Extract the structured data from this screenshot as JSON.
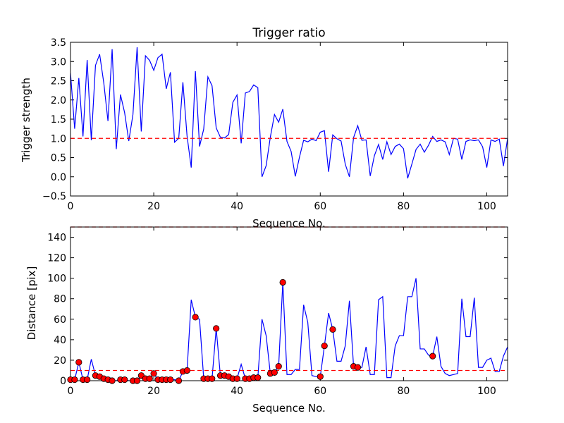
{
  "chart_data": [
    {
      "type": "line",
      "title": "Trigger ratio",
      "xlabel": "Sequence No.",
      "ylabel": "Trigger strength",
      "xlim": [
        0,
        105
      ],
      "ylim": [
        -0.5,
        3.5
      ],
      "xticks": [
        "0",
        "20",
        "40",
        "60",
        "80",
        "100"
      ],
      "yticks": [
        "−0.5",
        "0.0",
        "0.5",
        "1.0",
        "1.5",
        "2.0",
        "2.5",
        "3.0",
        "3.5"
      ],
      "grid": false,
      "line_color": "#0000ff",
      "threshold": {
        "y": 1.0,
        "color": "#ff0000",
        "style": "dashed"
      },
      "series": [
        {
          "values": [
            2.7,
            1.25,
            2.57,
            1.05,
            3.04,
            0.95,
            2.9,
            3.19,
            2.44,
            1.45,
            3.32,
            0.72,
            2.14,
            1.67,
            0.93,
            1.62,
            3.37,
            1.18,
            3.15,
            3.03,
            2.77,
            3.1,
            3.19,
            2.29,
            2.72,
            0.9,
            1.0,
            2.46,
            1.06,
            0.24,
            2.75,
            0.79,
            1.24,
            2.6,
            2.37,
            1.27,
            1.03,
            1.01,
            1.1,
            1.94,
            2.13,
            0.87,
            2.18,
            2.22,
            2.39,
            2.32,
            0.0,
            0.29,
            1.03,
            1.62,
            1.42,
            1.76,
            0.92,
            0.66,
            0.01,
            0.51,
            0.95,
            0.91,
            0.98,
            0.94,
            1.16,
            1.2,
            0.13,
            1.09,
            0.99,
            0.93,
            0.33,
            0.0,
            1.02,
            1.33,
            0.95,
            0.96,
            0.02,
            0.55,
            0.84,
            0.45,
            0.91,
            0.58,
            0.79,
            0.85,
            0.73,
            -0.04,
            0.33,
            0.71,
            0.85,
            0.64,
            0.82,
            1.05,
            0.92,
            0.96,
            0.91,
            0.58,
            1.0,
            0.98,
            0.45,
            0.92,
            0.96,
            0.94,
            0.96,
            0.78,
            0.24,
            0.96,
            0.92,
            0.98,
            0.28,
            1.0
          ]
        }
      ]
    },
    {
      "type": "line",
      "title": "",
      "xlabel": "Sequence No.",
      "ylabel": "Distance [pix]",
      "xlim": [
        0,
        105
      ],
      "ylim": [
        0,
        150
      ],
      "xticks": [
        "0",
        "20",
        "40",
        "60",
        "80",
        "100"
      ],
      "yticks": [
        "0",
        "20",
        "40",
        "60",
        "80",
        "100",
        "120",
        "140"
      ],
      "grid": false,
      "line_color": "#0000ff",
      "marker_color": "#ff0000",
      "thresholds": [
        {
          "y": 10,
          "color": "#ff0000",
          "style": "dashed"
        },
        {
          "y": 150,
          "color": "#ff0000",
          "style": "dashed"
        }
      ],
      "series": [
        {
          "values": [
            1,
            1,
            18,
            1,
            1,
            21,
            5,
            4,
            2,
            1,
            0,
            0,
            1,
            1,
            0,
            0,
            0,
            5,
            2,
            2,
            7,
            1,
            1,
            1,
            1,
            1,
            0,
            9,
            10,
            79,
            62,
            60,
            2,
            2,
            2,
            51,
            5,
            5,
            4,
            2,
            2,
            16,
            2,
            2,
            3,
            3,
            60,
            44,
            7,
            8,
            14,
            96,
            6,
            6,
            11,
            11,
            74,
            57,
            5,
            4,
            4,
            34,
            66,
            50,
            19,
            19,
            34,
            78,
            14,
            13,
            13,
            33,
            6,
            6,
            79,
            82,
            3,
            3,
            34,
            44,
            44,
            82,
            82,
            100,
            31,
            31,
            25,
            24,
            43,
            14,
            7,
            5,
            6,
            7,
            80,
            43,
            43,
            81,
            13,
            13,
            20,
            22,
            9,
            9,
            24,
            33
          ]
        }
      ],
      "marked_points": [
        [
          0,
          1
        ],
        [
          1,
          1
        ],
        [
          2,
          18
        ],
        [
          3,
          1
        ],
        [
          4,
          1
        ],
        [
          6,
          5
        ],
        [
          7,
          4
        ],
        [
          8,
          2
        ],
        [
          9,
          1
        ],
        [
          10,
          0
        ],
        [
          12,
          1
        ],
        [
          13,
          1
        ],
        [
          15,
          0
        ],
        [
          16,
          0
        ],
        [
          17,
          5
        ],
        [
          18,
          2
        ],
        [
          19,
          2
        ],
        [
          20,
          7
        ],
        [
          21,
          1
        ],
        [
          22,
          1
        ],
        [
          23,
          1
        ],
        [
          24,
          1
        ],
        [
          26,
          0
        ],
        [
          27,
          9
        ],
        [
          28,
          10
        ],
        [
          30,
          62
        ],
        [
          32,
          2
        ],
        [
          33,
          2
        ],
        [
          34,
          2
        ],
        [
          35,
          51
        ],
        [
          36,
          5
        ],
        [
          37,
          5
        ],
        [
          38,
          4
        ],
        [
          39,
          2
        ],
        [
          40,
          2
        ],
        [
          42,
          2
        ],
        [
          43,
          2
        ],
        [
          44,
          3
        ],
        [
          45,
          3
        ],
        [
          48,
          7
        ],
        [
          49,
          8
        ],
        [
          50,
          14
        ],
        [
          51,
          96
        ],
        [
          60,
          4
        ],
        [
          61,
          34
        ],
        [
          63,
          50
        ],
        [
          68,
          14
        ],
        [
          69,
          13
        ],
        [
          87,
          24
        ]
      ]
    }
  ]
}
